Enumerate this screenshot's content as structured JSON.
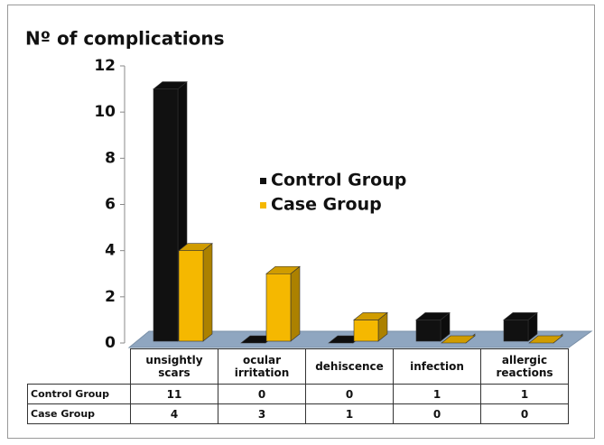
{
  "chart_data": {
    "type": "bar3d",
    "title": "Nº of complications",
    "categories": [
      "unsightly scars",
      "ocular irritation",
      "dehiscence",
      "infection",
      "allergic reactions"
    ],
    "series": [
      {
        "name": "Control Group",
        "color": "#111111",
        "values": [
          11,
          0,
          0,
          1,
          1
        ]
      },
      {
        "name": "Case Group",
        "color": "#f5b800",
        "values": [
          4,
          3,
          1,
          0,
          0
        ]
      }
    ],
    "ylim": [
      0,
      12
    ],
    "yticks": [
      0,
      2,
      4,
      6,
      8,
      10,
      12
    ]
  }
}
